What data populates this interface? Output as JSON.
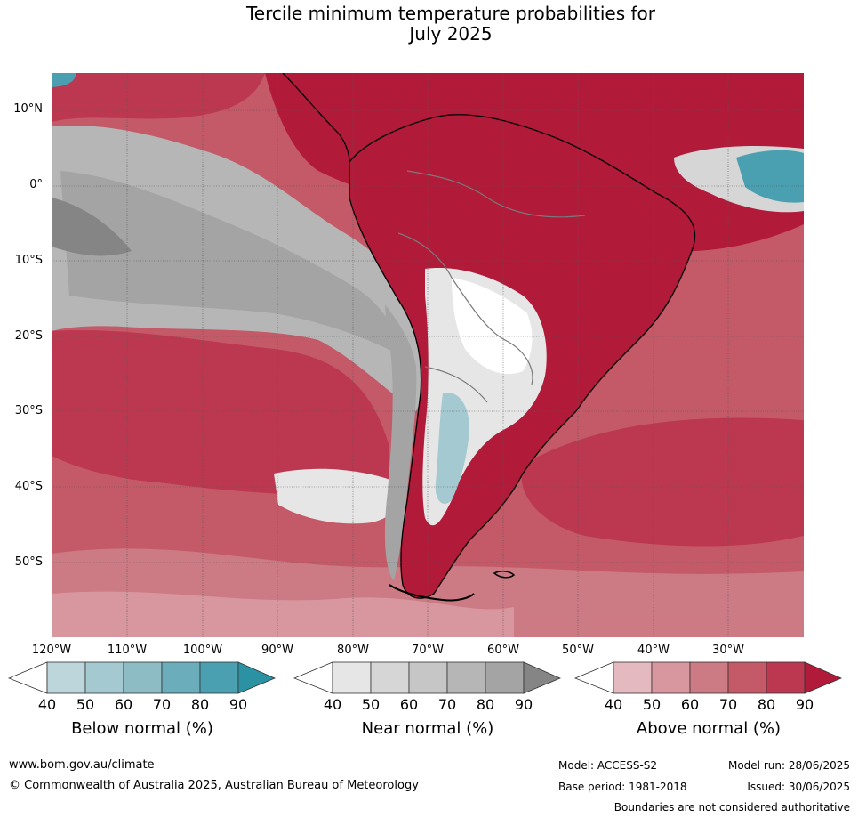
{
  "title_line1": "Tercile minimum temperature probabilities for",
  "title_line2": "July 2025",
  "lat_labels": [
    "10°N",
    "0°",
    "10°S",
    "20°S",
    "30°S",
    "40°S",
    "50°S"
  ],
  "lon_labels": [
    "120°W",
    "110°W",
    "100°W",
    "90°W",
    "80°W",
    "70°W",
    "60°W",
    "50°W",
    "40°W",
    "30°W"
  ],
  "colorbars": [
    {
      "title": "Below normal (%)",
      "ticks": [
        "40",
        "50",
        "60",
        "70",
        "80",
        "90"
      ],
      "colors": [
        "#ffffff",
        "#bcd6dc",
        "#a5c9d0",
        "#8dbcc5",
        "#6badbb",
        "#4aa0b0",
        "#2b92a4"
      ]
    },
    {
      "title": "Near normal (%)",
      "ticks": [
        "40",
        "50",
        "60",
        "70",
        "80",
        "90"
      ],
      "colors": [
        "#ffffff",
        "#e6e6e6",
        "#d6d6d6",
        "#c6c6c6",
        "#b6b6b6",
        "#a4a4a4",
        "#858585"
      ]
    },
    {
      "title": "Above normal (%)",
      "ticks": [
        "40",
        "50",
        "60",
        "70",
        "80",
        "90"
      ],
      "colors": [
        "#ffffff",
        "#e4b9bf",
        "#d8979f",
        "#cc7a84",
        "#c45a68",
        "#bc3850",
        "#b21a3a"
      ]
    }
  ],
  "footer": {
    "url": "www.bom.gov.au/climate",
    "copyright": "© Commonwealth of Australia 2025, Australian Bureau of Meteorology",
    "model": "Model: ACCESS-S2",
    "base_period": "Base period: 1981-2018",
    "model_run": "Model run: 28/06/2025",
    "issued": "Issued: 30/06/2025",
    "disclaimer": "Boundaries are not considered authoritative"
  }
}
